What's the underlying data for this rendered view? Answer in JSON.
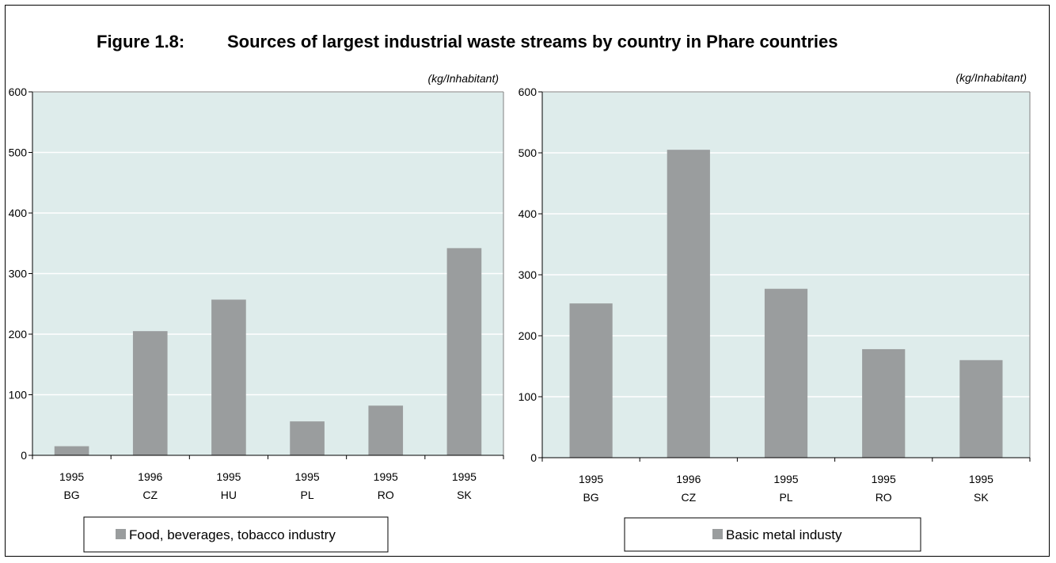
{
  "figure": {
    "number": "Figure 1.8:",
    "title": "Sources of largest industrial waste streams by country in Phare countries"
  },
  "colors": {
    "plot_bg": "#deeceb",
    "bar": "#9a9d9e",
    "gridline": "#ffffff"
  },
  "chart_data": [
    {
      "type": "bar",
      "unit_label": "(kg/Inhabitant)",
      "categories": [
        "BG",
        "CZ",
        "HU",
        "PL",
        "RO",
        "SK"
      ],
      "years": [
        "1995",
        "1996",
        "1995",
        "1995",
        "1995",
        "1995"
      ],
      "ylim": [
        0,
        600
      ],
      "yticks": [
        0,
        100,
        200,
        300,
        400,
        500,
        600
      ],
      "grid": true,
      "legend_position": "bottom",
      "series": [
        {
          "name": "Food, beverages, tobacco industry",
          "values": [
            15,
            205,
            257,
            56,
            82,
            342
          ]
        }
      ]
    },
    {
      "type": "bar",
      "unit_label": "(kg/Inhabitant)",
      "categories": [
        "BG",
        "CZ",
        "PL",
        "RO",
        "SK"
      ],
      "years": [
        "1995",
        "1996",
        "1995",
        "1995",
        "1995"
      ],
      "ylim": [
        0,
        600
      ],
      "yticks": [
        0,
        100,
        200,
        300,
        400,
        500,
        600
      ],
      "grid": true,
      "legend_position": "bottom",
      "series": [
        {
          "name": "Basic metal industy",
          "values": [
            253,
            505,
            277,
            178,
            160
          ]
        }
      ]
    }
  ]
}
